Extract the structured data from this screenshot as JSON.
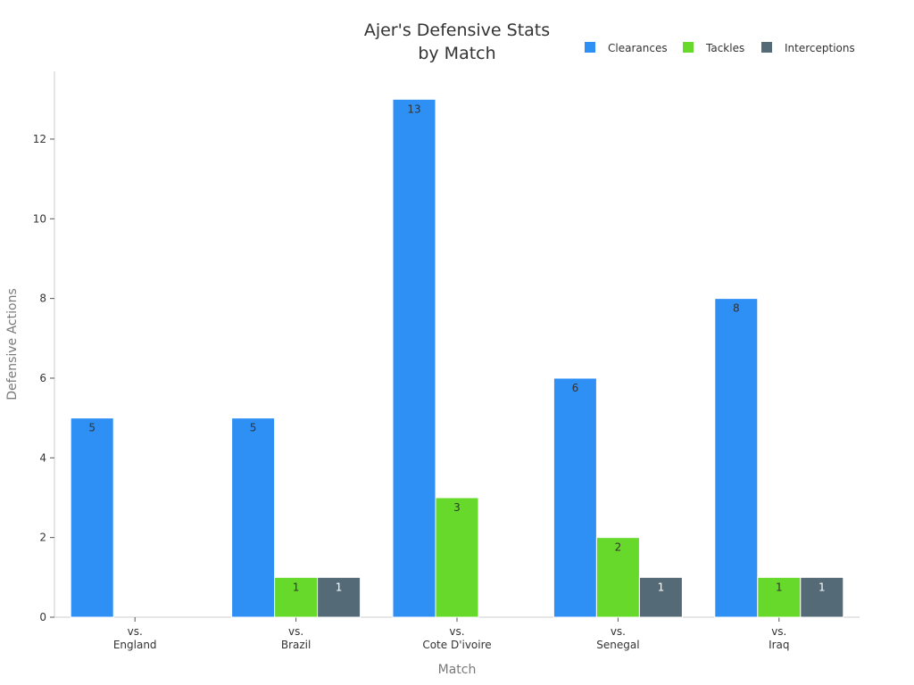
{
  "chart_data": {
    "type": "bar",
    "title_lines": [
      "Ajer's Defensive Stats",
      "by Match"
    ],
    "xlabel": "Match",
    "ylabel": "Defensive Actions",
    "categories": [
      [
        "vs.",
        "England"
      ],
      [
        "vs.",
        "Brazil"
      ],
      [
        "vs.",
        "Cote D'ivoire"
      ],
      [
        "vs.",
        "Senegal"
      ],
      [
        "vs.",
        "Iraq"
      ]
    ],
    "series": [
      {
        "name": "Clearances",
        "color": "#2e8ff5",
        "label_color": "#333333",
        "values": [
          5,
          5,
          13,
          6,
          8
        ]
      },
      {
        "name": "Tackles",
        "color": "#66d92b",
        "label_color": "#333333",
        "values": [
          0,
          1,
          3,
          2,
          1
        ]
      },
      {
        "name": "Interceptions",
        "color": "#546b77",
        "label_color": "#ffffff",
        "values": [
          0,
          1,
          0,
          1,
          1
        ]
      }
    ],
    "ylim": [
      0,
      13.7
    ],
    "yticks": [
      0,
      2,
      4,
      6,
      8,
      10,
      12
    ],
    "grid": false,
    "legend_position": "top-right"
  }
}
